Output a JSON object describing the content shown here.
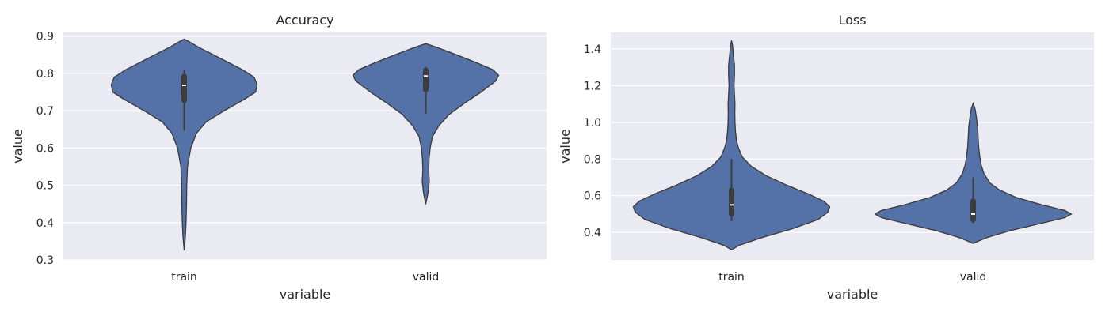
{
  "colors": {
    "violin_fill": "#5572a8",
    "violin_edge": "#3d3d3d",
    "plot_background": "#eaeaf2",
    "grid": "#ffffff",
    "box": "#3d3d3d",
    "median": "#ffffff"
  },
  "chart_data": [
    {
      "type": "violin",
      "title": "Accuracy",
      "xlabel": "variable",
      "ylabel": "value",
      "categories": [
        "train",
        "valid"
      ],
      "ylim": [
        0.3,
        0.91
      ],
      "yticks": [
        0.3,
        0.4,
        0.5,
        0.6,
        0.7,
        0.8,
        0.9
      ],
      "ytick_labels": [
        "0.3",
        "0.4",
        "0.5",
        "0.6",
        "0.7",
        "0.8",
        "0.9"
      ],
      "grid": true,
      "violins": [
        {
          "category": "train",
          "whisker": [
            0.647,
            0.81
          ],
          "q1": 0.728,
          "median": 0.768,
          "q3": 0.792,
          "profile": [
            [
              0.327,
              0.0
            ],
            [
              0.36,
              0.015
            ],
            [
              0.4,
              0.025
            ],
            [
              0.45,
              0.032
            ],
            [
              0.5,
              0.035
            ],
            [
              0.55,
              0.045
            ],
            [
              0.6,
              0.09
            ],
            [
              0.64,
              0.17
            ],
            [
              0.67,
              0.3
            ],
            [
              0.7,
              0.55
            ],
            [
              0.73,
              0.82
            ],
            [
              0.75,
              0.98
            ],
            [
              0.77,
              1.0
            ],
            [
              0.79,
              0.96
            ],
            [
              0.81,
              0.8
            ],
            [
              0.83,
              0.6
            ],
            [
              0.85,
              0.4
            ],
            [
              0.87,
              0.2
            ],
            [
              0.885,
              0.07
            ],
            [
              0.892,
              0.0
            ]
          ]
        },
        {
          "category": "valid",
          "whisker": [
            0.692,
            0.818
          ],
          "q1": 0.757,
          "median": 0.793,
          "q3": 0.808,
          "profile": [
            [
              0.45,
              0.0
            ],
            [
              0.48,
              0.03
            ],
            [
              0.51,
              0.048
            ],
            [
              0.54,
              0.04
            ],
            [
              0.57,
              0.045
            ],
            [
              0.6,
              0.06
            ],
            [
              0.63,
              0.09
            ],
            [
              0.66,
              0.18
            ],
            [
              0.69,
              0.32
            ],
            [
              0.72,
              0.53
            ],
            [
              0.75,
              0.76
            ],
            [
              0.78,
              0.96
            ],
            [
              0.795,
              1.0
            ],
            [
              0.81,
              0.92
            ],
            [
              0.83,
              0.68
            ],
            [
              0.85,
              0.42
            ],
            [
              0.87,
              0.15
            ],
            [
              0.88,
              0.0
            ]
          ]
        }
      ]
    },
    {
      "type": "violin",
      "title": "Loss",
      "xlabel": "variable",
      "ylabel": "value",
      "categories": [
        "train",
        "valid"
      ],
      "ylim": [
        0.25,
        1.49
      ],
      "yticks": [
        0.4,
        0.6,
        0.8,
        1.0,
        1.2,
        1.4
      ],
      "ytick_labels": [
        "0.4",
        "0.6",
        "0.8",
        "1.0",
        "1.2",
        "1.4"
      ],
      "grid": true,
      "violins": [
        {
          "category": "train",
          "whisker": [
            0.46,
            0.8
          ],
          "q1": 0.5,
          "median": 0.55,
          "q3": 0.63,
          "profile": [
            [
              0.305,
              0.0
            ],
            [
              0.33,
              0.08
            ],
            [
              0.37,
              0.3
            ],
            [
              0.42,
              0.62
            ],
            [
              0.47,
              0.88
            ],
            [
              0.51,
              0.98
            ],
            [
              0.54,
              1.0
            ],
            [
              0.57,
              0.94
            ],
            [
              0.61,
              0.78
            ],
            [
              0.66,
              0.55
            ],
            [
              0.71,
              0.35
            ],
            [
              0.76,
              0.2
            ],
            [
              0.81,
              0.11
            ],
            [
              0.86,
              0.07
            ],
            [
              0.9,
              0.05
            ],
            [
              0.95,
              0.04
            ],
            [
              1.0,
              0.035
            ],
            [
              1.05,
              0.033
            ],
            [
              1.1,
              0.035
            ],
            [
              1.15,
              0.03
            ],
            [
              1.2,
              0.025
            ],
            [
              1.26,
              0.03
            ],
            [
              1.31,
              0.03
            ],
            [
              1.36,
              0.02
            ],
            [
              1.42,
              0.01
            ],
            [
              1.445,
              0.0
            ]
          ]
        },
        {
          "category": "valid",
          "whisker": [
            0.45,
            0.7
          ],
          "q1": 0.47,
          "median": 0.5,
          "q3": 0.57,
          "profile": [
            [
              0.34,
              0.0
            ],
            [
              0.37,
              0.13
            ],
            [
              0.41,
              0.38
            ],
            [
              0.45,
              0.7
            ],
            [
              0.48,
              0.93
            ],
            [
              0.5,
              1.0
            ],
            [
              0.52,
              0.93
            ],
            [
              0.55,
              0.7
            ],
            [
              0.59,
              0.44
            ],
            [
              0.63,
              0.27
            ],
            [
              0.67,
              0.17
            ],
            [
              0.72,
              0.11
            ],
            [
              0.77,
              0.08
            ],
            [
              0.82,
              0.065
            ],
            [
              0.87,
              0.055
            ],
            [
              0.92,
              0.05
            ],
            [
              0.97,
              0.045
            ],
            [
              1.02,
              0.035
            ],
            [
              1.07,
              0.02
            ],
            [
              1.105,
              0.0
            ]
          ]
        }
      ]
    }
  ]
}
